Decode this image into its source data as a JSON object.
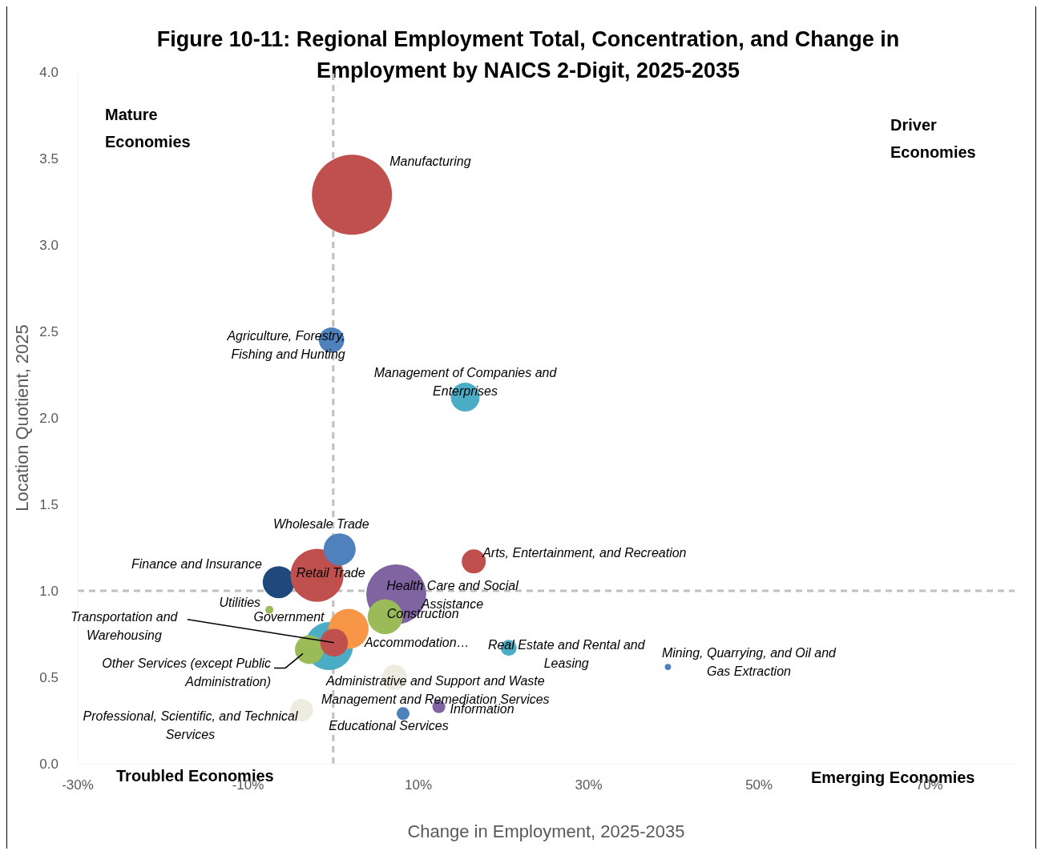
{
  "chart_data": {
    "type": "bubble",
    "title": "Figure 10-11: Regional Employment Total, Concentration, and Change in Employment by NAICS 2-Digit, 2025-2035",
    "xlabel": "Change in Employment, 2025-2035",
    "ylabel": "Location Quotient, 2025",
    "xlim": [
      -30,
      80
    ],
    "xticks": [
      {
        "value": -30,
        "label": "-30%"
      },
      {
        "value": -10,
        "label": "-10%"
      },
      {
        "value": 10,
        "label": "10%"
      },
      {
        "value": 30,
        "label": "30%"
      },
      {
        "value": 50,
        "label": "50%"
      },
      {
        "value": 70,
        "label": "70%"
      }
    ],
    "ylim": [
      0,
      4
    ],
    "yticks": [
      {
        "value": 0,
        "label": "0.0"
      },
      {
        "value": 0.5,
        "label": "0.5"
      },
      {
        "value": 1,
        "label": "1.0"
      },
      {
        "value": 1.5,
        "label": "1.5"
      },
      {
        "value": 2,
        "label": "2.0"
      },
      {
        "value": 2.5,
        "label": "2.5"
      },
      {
        "value": 3,
        "label": "3.0"
      },
      {
        "value": 3.5,
        "label": "3.5"
      },
      {
        "value": 4,
        "label": "4.0"
      }
    ],
    "grid": false,
    "legend": false,
    "ref_lines": [
      {
        "axis": "x",
        "value": 0,
        "color": "#bfbfbf",
        "line_style": "dashed"
      },
      {
        "axis": "y",
        "value": 1,
        "color": "#bfbfbf",
        "line_style": "dashed"
      }
    ],
    "annotations": [
      "Mature Economies",
      "Driver Economies",
      "Troubled Economies",
      "Emerging Economies"
    ],
    "series": [
      {
        "name": "Manufacturing",
        "color": "#c0504d",
        "x": [
          2.2
        ],
        "values": [
          3.29
        ],
        "sizes": [
          1
        ]
      },
      {
        "name": "Health Care and Social Assistance",
        "color": "#8064a2",
        "x": [
          7.4
        ],
        "values": [
          0.98
        ],
        "sizes": [
          0.56
        ]
      },
      {
        "name": "Government",
        "color": "#4bacc6",
        "x": [
          -0.5
        ],
        "values": [
          0.68
        ],
        "sizes": [
          0.36
        ]
      },
      {
        "name": "Finance and Insurance",
        "color": "#1f497d",
        "x": [
          -6.4
        ],
        "values": [
          1.05
        ],
        "sizes": [
          0.16
        ]
      },
      {
        "name": "Retail Trade",
        "color": "#c0504d",
        "x": [
          -1.9
        ],
        "values": [
          1.09
        ],
        "sizes": [
          0.44
        ]
      },
      {
        "name": "Wholesale Trade",
        "color": "#4f81bd",
        "x": [
          0.75
        ],
        "values": [
          1.24
        ],
        "sizes": [
          0.16
        ]
      },
      {
        "name": "Accommodation…",
        "color": "#f79646",
        "x": [
          1.8
        ],
        "values": [
          0.78
        ],
        "sizes": [
          0.25
        ]
      },
      {
        "name": "Construction",
        "color": "#9bbb59",
        "x": [
          6.1
        ],
        "values": [
          0.85
        ],
        "sizes": [
          0.19
        ]
      },
      {
        "name": "Other Services (except Public Administration)",
        "color": "#9bbb59",
        "x": [
          -2.8
        ],
        "values": [
          0.66
        ],
        "sizes": [
          0.13
        ]
      },
      {
        "name": "Transportation and Warehousing",
        "color": "#c0504d",
        "x": [
          0.1
        ],
        "values": [
          0.7
        ],
        "sizes": [
          0.12
        ]
      },
      {
        "name": "Agriculture, Forestry, Fishing and Hunting",
        "color": "#4f81bd",
        "x": [
          -0.2
        ],
        "values": [
          2.45
        ],
        "sizes": [
          0.1
        ]
      },
      {
        "name": "Management of Companies and Enterprises",
        "color": "#4bacc6",
        "x": [
          15.5
        ],
        "values": [
          2.12
        ],
        "sizes": [
          0.13
        ]
      },
      {
        "name": "Arts, Entertainment, and Recreation",
        "color": "#c0504d",
        "x": [
          16.5
        ],
        "values": [
          1.17
        ],
        "sizes": [
          0.09
        ]
      },
      {
        "name": "Utilities",
        "color": "#9bbb59",
        "x": [
          -7.5
        ],
        "values": [
          0.89
        ],
        "sizes": [
          0.01
        ]
      },
      {
        "name": "Real Estate and Rental and Leasing",
        "color": "#4bacc6",
        "x": [
          20.6
        ],
        "values": [
          0.67
        ],
        "sizes": [
          0.04
        ]
      },
      {
        "name": "Mining, Quarrying, and Oil and Gas Extraction",
        "color": "#4f81bd",
        "x": [
          39.3
        ],
        "values": [
          0.56
        ],
        "sizes": [
          0.006
        ]
      },
      {
        "name": "Administrative and Support and Waste Management and Remediation Services",
        "color": "#eeece1",
        "x": [
          7.2
        ],
        "values": [
          0.5
        ],
        "sizes": [
          0.1
        ]
      },
      {
        "name": "Professional, Scientific, and Technical Services",
        "color": "#eeece1",
        "x": [
          -3.7
        ],
        "values": [
          0.31
        ],
        "sizes": [
          0.08
        ]
      },
      {
        "name": "Educational Services",
        "color": "#4f81bd",
        "x": [
          8.2
        ],
        "values": [
          0.29
        ],
        "sizes": [
          0.026
        ]
      },
      {
        "name": "Information",
        "color": "#8064a2",
        "x": [
          12.4
        ],
        "values": [
          0.33
        ],
        "sizes": [
          0.026
        ]
      }
    ]
  }
}
